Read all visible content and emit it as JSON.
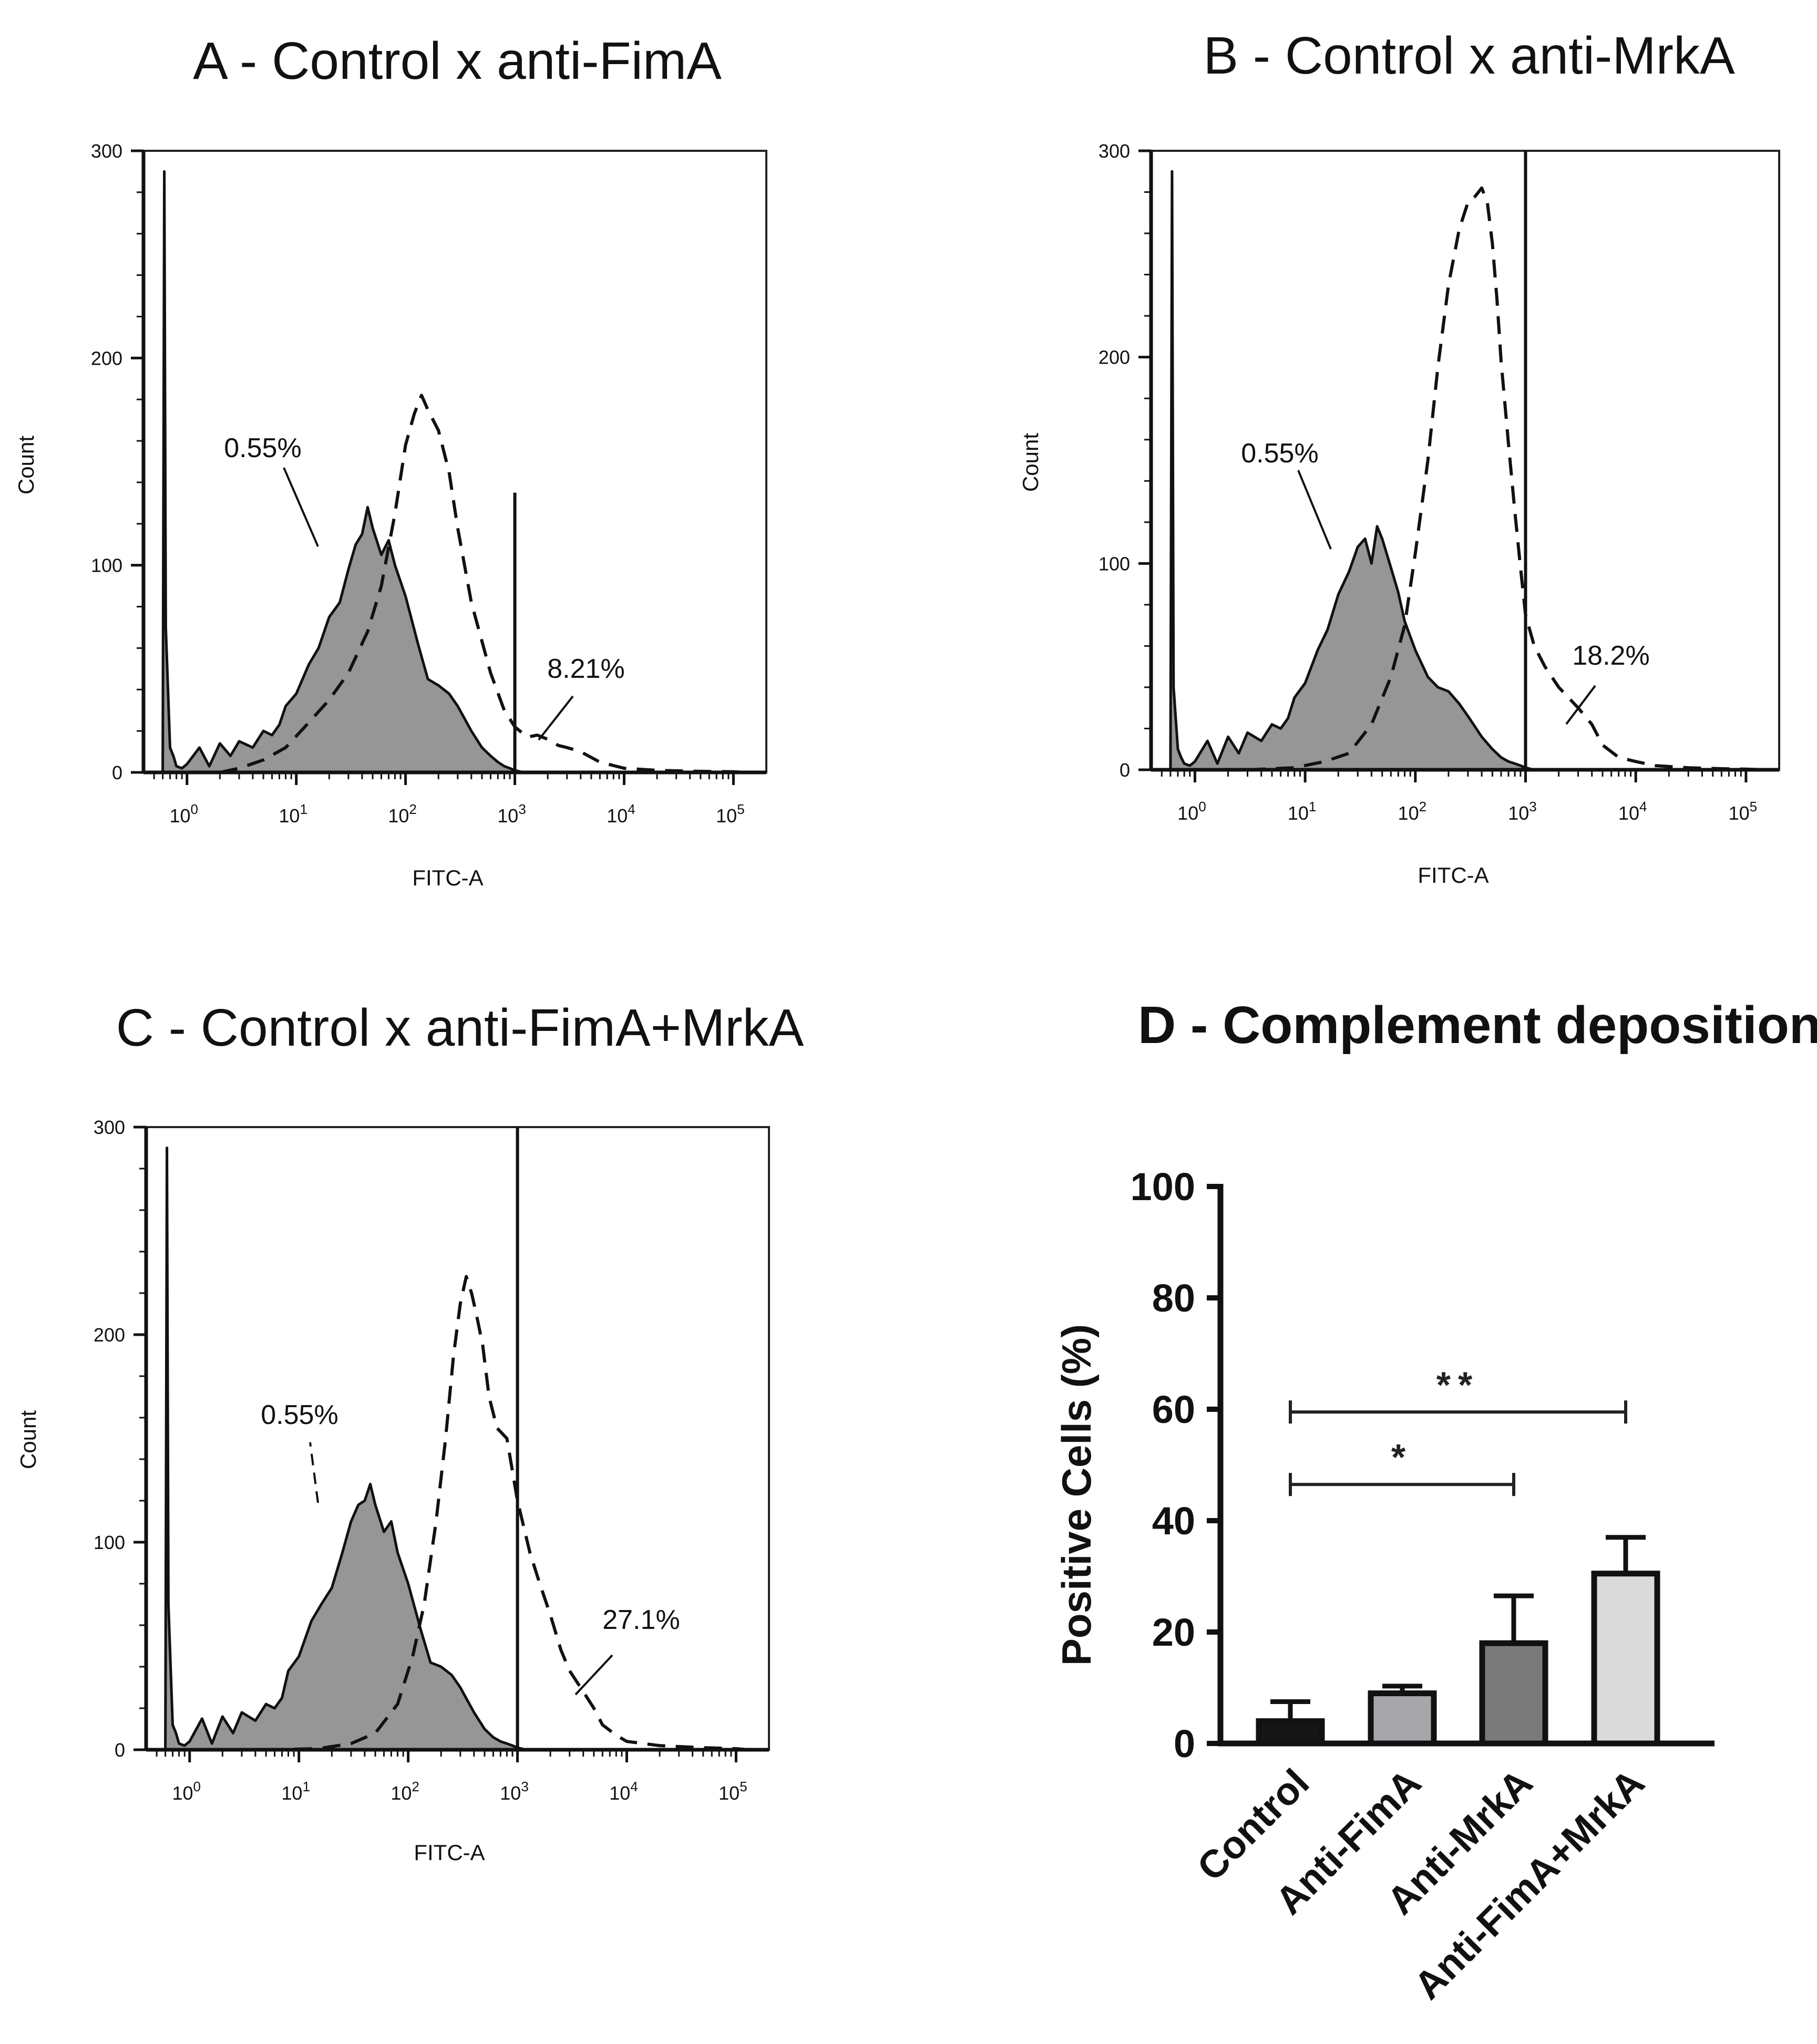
{
  "chart_data": [
    {
      "panel": "A",
      "type": "area",
      "title": "A - Control x anti-FimA",
      "xlabel": "FITC-A",
      "ylabel": "Count",
      "xscale": "log",
      "xlim": [
        0.4,
        200000
      ],
      "ylim": [
        0,
        300
      ],
      "x_ticks": [
        1,
        10,
        100,
        1000,
        10000,
        100000
      ],
      "x_tick_labels": [
        "10^0",
        "10^1",
        "10^2",
        "10^3",
        "10^4",
        "10^5"
      ],
      "y_ticks": [
        0,
        100,
        200,
        300
      ],
      "gate_x": 1000,
      "series": [
        {
          "name": "Control",
          "style": "filled-gray",
          "x": [
            0.6,
            0.62,
            0.64,
            0.7,
            0.75,
            0.8,
            0.9,
            1.0,
            1.3,
            1.6,
            2.0,
            2.5,
            3.0,
            4.0,
            5.0,
            6.0,
            7.0,
            8.0,
            10,
            13,
            16,
            20,
            25,
            30,
            35,
            40,
            45,
            50,
            60,
            70,
            80,
            100,
            130,
            160,
            200,
            250,
            300,
            400,
            500,
            600,
            700,
            800,
            900,
            1000,
            1200
          ],
          "y": [
            0,
            290,
            70,
            12,
            8,
            3,
            2,
            4,
            12,
            3,
            14,
            8,
            15,
            12,
            20,
            18,
            23,
            32,
            38,
            52,
            60,
            75,
            82,
            98,
            110,
            115,
            128,
            118,
            105,
            112,
            100,
            85,
            62,
            45,
            42,
            38,
            32,
            20,
            12,
            8,
            5,
            3,
            2,
            1,
            0
          ]
        },
        {
          "name": "Anti-FimA",
          "style": "dashed",
          "x": [
            2.0,
            3.0,
            5.0,
            8.0,
            12,
            20,
            30,
            45,
            60,
            80,
            100,
            120,
            140,
            160,
            200,
            250,
            300,
            400,
            600,
            800,
            1000,
            1300,
            1600,
            2000,
            2500,
            3000,
            4000,
            6000,
            10000,
            20000,
            50000,
            100000,
            130000
          ],
          "y": [
            0,
            2,
            6,
            12,
            22,
            35,
            48,
            68,
            90,
            125,
            158,
            173,
            182,
            175,
            165,
            145,
            118,
            82,
            48,
            30,
            22,
            17,
            18,
            16,
            13,
            12,
            10,
            5,
            2,
            1,
            0.5,
            0.3,
            0
          ]
        }
      ],
      "annotations": [
        {
          "text": "0.55%",
          "target": "Control"
        },
        {
          "text": "8.21%",
          "target": "Anti-FimA"
        }
      ]
    },
    {
      "panel": "B",
      "type": "area",
      "title": "B - Control x anti-MrkA",
      "xlabel": "FITC-A",
      "ylabel": "Count",
      "xscale": "log",
      "xlim": [
        0.4,
        200000
      ],
      "ylim": [
        0,
        300
      ],
      "x_ticks": [
        1,
        10,
        100,
        1000,
        10000,
        100000
      ],
      "x_tick_labels": [
        "10^0",
        "10^1",
        "10^2",
        "10^3",
        "10^4",
        "10^5"
      ],
      "y_ticks": [
        0,
        100,
        200,
        300
      ],
      "gate_x": 1000,
      "series": [
        {
          "name": "Control",
          "style": "filled-gray",
          "x": [
            0.6,
            0.62,
            0.64,
            0.7,
            0.75,
            0.8,
            0.9,
            1.0,
            1.3,
            1.6,
            2.0,
            2.5,
            3.0,
            4.0,
            5.0,
            6.0,
            7.0,
            8.0,
            10,
            13,
            16,
            20,
            25,
            30,
            35,
            40,
            45,
            50,
            60,
            70,
            80,
            100,
            130,
            160,
            200,
            250,
            300,
            400,
            500,
            600,
            700,
            800,
            900,
            1000,
            1200
          ],
          "y": [
            0,
            290,
            40,
            10,
            6,
            3,
            2,
            4,
            14,
            3,
            16,
            8,
            18,
            14,
            22,
            20,
            25,
            35,
            42,
            58,
            68,
            85,
            96,
            108,
            112,
            100,
            118,
            112,
            98,
            86,
            72,
            58,
            45,
            40,
            38,
            32,
            26,
            16,
            10,
            6,
            4,
            3,
            2,
            1,
            0
          ]
        },
        {
          "name": "Anti-MrkA",
          "style": "dashed",
          "x": [
            3.0,
            8.0,
            15,
            25,
            40,
            60,
            80,
            100,
            130,
            160,
            200,
            250,
            300,
            350,
            400,
            450,
            500,
            550,
            600,
            700,
            800,
            900,
            1000,
            1200,
            1500,
            2000,
            3000,
            4000,
            5000,
            7000,
            10000,
            15000,
            30000,
            60000,
            100000,
            150000
          ],
          "y": [
            0,
            1,
            4,
            8,
            22,
            45,
            70,
            105,
            150,
            195,
            235,
            262,
            275,
            278,
            282,
            275,
            255,
            228,
            198,
            158,
            125,
            98,
            75,
            60,
            50,
            40,
            30,
            22,
            12,
            6,
            4,
            2,
            1,
            0.5,
            0.3,
            0
          ]
        }
      ],
      "annotations": [
        {
          "text": "0.55%",
          "target": "Control"
        },
        {
          "text": "18.2%",
          "target": "Anti-MrkA"
        }
      ]
    },
    {
      "panel": "C",
      "type": "area",
      "title": "C - Control x anti-FimA+MrkA",
      "xlabel": "FITC-A",
      "ylabel": "Count",
      "xscale": "log",
      "xlim": [
        0.4,
        200000
      ],
      "ylim": [
        0,
        300
      ],
      "x_ticks": [
        1,
        10,
        100,
        1000,
        10000,
        100000
      ],
      "x_tick_labels": [
        "10^0",
        "10^1",
        "10^2",
        "10^3",
        "10^4",
        "10^5"
      ],
      "y_ticks": [
        0,
        100,
        200,
        300
      ],
      "gate_x": 1000,
      "series": [
        {
          "name": "Control",
          "style": "filled-gray",
          "x": [
            0.6,
            0.62,
            0.64,
            0.7,
            0.75,
            0.8,
            0.9,
            1.0,
            1.3,
            1.6,
            2.0,
            2.5,
            3.0,
            4.0,
            5.0,
            6.0,
            7.0,
            8.0,
            10,
            13,
            16,
            20,
            25,
            30,
            35,
            40,
            45,
            50,
            60,
            70,
            80,
            100,
            130,
            160,
            200,
            250,
            300,
            400,
            500,
            600,
            700,
            800,
            900,
            1000,
            1200
          ],
          "y": [
            0,
            290,
            70,
            12,
            8,
            3,
            2,
            4,
            15,
            3,
            16,
            8,
            18,
            14,
            22,
            20,
            25,
            38,
            45,
            62,
            70,
            78,
            95,
            110,
            118,
            120,
            128,
            118,
            105,
            110,
            95,
            80,
            58,
            42,
            40,
            36,
            30,
            18,
            10,
            6,
            4,
            3,
            2,
            1,
            0
          ]
        },
        {
          "name": "Anti-FimA+MrkA",
          "style": "dashed",
          "x": [
            5.0,
            15,
            30,
            50,
            80,
            110,
            140,
            180,
            220,
            260,
            300,
            340,
            380,
            420,
            480,
            550,
            650,
            800,
            1000,
            1300,
            1600,
            2000,
            2500,
            3000,
            4000,
            5000,
            6000,
            8000,
            10000,
            20000,
            50000,
            100000,
            130000
          ],
          "y": [
            0,
            0.5,
            3,
            8,
            22,
            45,
            70,
            110,
            150,
            190,
            215,
            228,
            220,
            210,
            195,
            170,
            155,
            150,
            120,
            95,
            80,
            65,
            48,
            38,
            28,
            20,
            12,
            7,
            4,
            2,
            1,
            0.5,
            0
          ]
        }
      ],
      "annotations": [
        {
          "text": "0.55%",
          "target": "Control"
        },
        {
          "text": "27.1%",
          "target": "Anti-FimA+MrkA"
        }
      ]
    },
    {
      "panel": "D",
      "type": "bar",
      "title": "D - Complement deposition",
      "xlabel": "",
      "ylabel": "Positive Cells (%)",
      "ylim": [
        0,
        100
      ],
      "y_ticks": [
        0,
        20,
        40,
        60,
        80,
        100
      ],
      "categories": [
        "Control",
        "Anti-FimA",
        "Anti-MrkA",
        "Anti-FimA+MrkA"
      ],
      "values": [
        4,
        9,
        18,
        30.5
      ],
      "errors": [
        3.5,
        1.3,
        8.5,
        6.5
      ],
      "bar_colors": [
        "#161616",
        "#a7a7ab",
        "#7a7a7a",
        "#dadada"
      ],
      "significance": [
        {
          "from": "Control",
          "to": "Anti-MrkA",
          "y": 46.5,
          "label": "*"
        },
        {
          "from": "Control",
          "to": "Anti-FimA+MrkA",
          "y": 59.5,
          "label": "**"
        }
      ]
    }
  ]
}
